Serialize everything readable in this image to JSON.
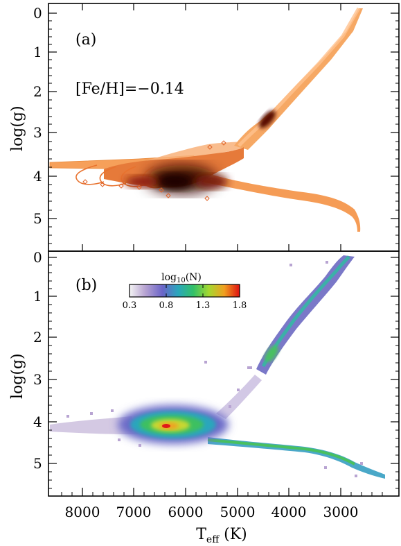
{
  "chart_data": [
    {
      "panel_label": "(a)",
      "annotation": "[Fe/H]=−0.14",
      "type": "scatter",
      "ylabel": "log(g)",
      "xlabel": "",
      "xlim": [
        8600,
        2500
      ],
      "ylim": [
        5.8,
        -0.1
      ],
      "y_ticks": [
        "0",
        "1",
        "2",
        "3",
        "4",
        "5"
      ],
      "marker": "open-diamond",
      "color_scale": [
        "#ffb070",
        "#f08a40",
        "#c64a1c",
        "#7a1c0c",
        "#2e0402"
      ],
      "tracks": [
        {
          "name": "giant-branch",
          "points": [
            [
              5150,
              3.3
            ],
            [
              4850,
              3.0
            ],
            [
              4550,
              2.6
            ],
            [
              4200,
              2.0
            ],
            [
              3850,
              1.4
            ],
            [
              3500,
              0.7
            ],
            [
              3200,
              0.0
            ]
          ]
        },
        {
          "name": "main-sequence",
          "points": [
            [
              6500,
              4.2
            ],
            [
              6000,
              4.3
            ],
            [
              5500,
              4.5
            ],
            [
              5000,
              4.62
            ],
            [
              4500,
              4.68
            ],
            [
              4000,
              4.75
            ],
            [
              3700,
              4.9
            ],
            [
              3450,
              5.1
            ],
            [
              3250,
              5.3
            ]
          ]
        },
        {
          "name": "turnoff-hooks",
          "points": [
            [
              8300,
              3.75
            ],
            [
              7800,
              3.85
            ],
            [
              7300,
              3.95
            ],
            [
              7000,
              4.1
            ],
            [
              6600,
              4.15
            ],
            [
              6300,
              4.2
            ],
            [
              5900,
              4.25
            ],
            [
              5600,
              4.2
            ],
            [
              5300,
              3.6
            ]
          ]
        }
      ],
      "density_peaks": [
        {
          "teff": 6200,
          "logg": 4.15,
          "level": 1.0
        },
        {
          "teff": 6800,
          "logg": 4.1,
          "level": 0.75
        },
        {
          "teff": 4650,
          "logg": 2.5,
          "level": 0.7
        },
        {
          "teff": 5700,
          "logg": 4.3,
          "level": 0.6
        }
      ]
    },
    {
      "panel_label": "(b)",
      "type": "heatmap",
      "ylabel": "log(g)",
      "xlabel": "T_eff (K)",
      "xlim": [
        8600,
        2500
      ],
      "ylim": [
        5.8,
        -0.1
      ],
      "y_ticks": [
        "0",
        "1",
        "2",
        "3",
        "4",
        "5"
      ],
      "x_ticks": [
        "8000",
        "7000",
        "6000",
        "5000",
        "4000",
        "3000"
      ],
      "colorbar": {
        "label": "log",
        "label_sub": "10",
        "label_suffix": "(N)",
        "ticks": [
          "0.3",
          "0.8",
          "1.3",
          "1.8"
        ],
        "range": [
          0.3,
          1.8
        ],
        "colors": [
          "#f4f4f4",
          "#b8a4d2",
          "#6a64c8",
          "#2aa6bc",
          "#32c068",
          "#a4d830",
          "#f0a020",
          "#e01010"
        ]
      },
      "structures": [
        {
          "name": "giant-branch",
          "points": [
            [
              4850,
              2.9
            ],
            [
              4600,
              2.4
            ],
            [
              4300,
              1.9
            ],
            [
              4000,
              1.3
            ],
            [
              3700,
              0.7
            ],
            [
              3400,
              0.1
            ]
          ],
          "peak_log10N": 1.4
        },
        {
          "name": "main-sequence",
          "points": [
            [
              5500,
              4.45
            ],
            [
              5000,
              4.55
            ],
            [
              4500,
              4.62
            ],
            [
              4000,
              4.72
            ],
            [
              3600,
              4.85
            ],
            [
              3300,
              5.1
            ],
            [
              2900,
              5.25
            ]
          ],
          "peak_log10N": 1.5
        },
        {
          "name": "turnoff-clump",
          "center": [
            6350,
            4.1
          ],
          "peak_log10N": 1.8
        },
        {
          "name": "hot-tail",
          "points": [
            [
              8500,
              4.15
            ],
            [
              7800,
              4.18
            ],
            [
              7200,
              4.15
            ],
            [
              6800,
              4.1
            ]
          ],
          "peak_log10N": 0.5
        }
      ]
    }
  ]
}
